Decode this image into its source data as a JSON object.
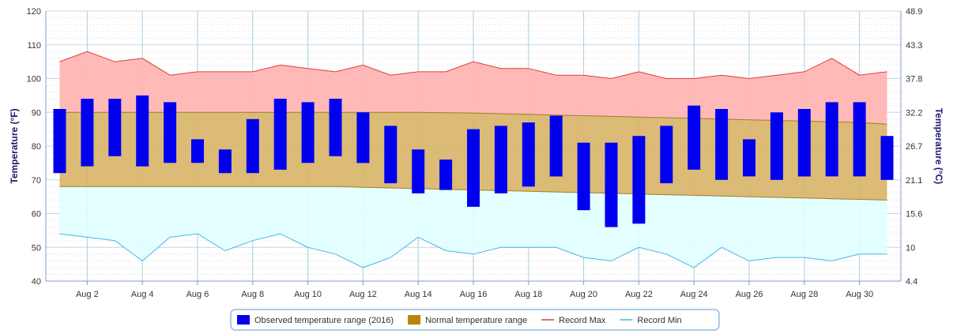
{
  "chart_data": {
    "type": "bar",
    "ylabel": "Temperature (°F)",
    "y2label": "Temperature (°C)",
    "ylim": [
      40,
      120
    ],
    "y_ticks": [
      40,
      50,
      60,
      70,
      80,
      90,
      100,
      110,
      120
    ],
    "y2_ticks": [
      "4.4",
      "10",
      "15.6",
      "21.1",
      "26.7",
      "32.2",
      "37.8",
      "43.3",
      "48.9"
    ],
    "x": [
      "Aug 1",
      "Aug 2",
      "Aug 3",
      "Aug 4",
      "Aug 5",
      "Aug 6",
      "Aug 7",
      "Aug 8",
      "Aug 9",
      "Aug 10",
      "Aug 11",
      "Aug 12",
      "Aug 13",
      "Aug 14",
      "Aug 15",
      "Aug 16",
      "Aug 17",
      "Aug 18",
      "Aug 19",
      "Aug 20",
      "Aug 21",
      "Aug 22",
      "Aug 23",
      "Aug 24",
      "Aug 25",
      "Aug 26",
      "Aug 27",
      "Aug 28",
      "Aug 29",
      "Aug 30",
      "Aug 31"
    ],
    "x_tick_labels": [
      "Aug 2",
      "Aug 4",
      "Aug 6",
      "Aug 8",
      "Aug 10",
      "Aug 12",
      "Aug 14",
      "Aug 16",
      "Aug 18",
      "Aug 20",
      "Aug 22",
      "Aug 24",
      "Aug 26",
      "Aug 28",
      "Aug 30"
    ],
    "grid": true,
    "legend_position": "bottom",
    "series": [
      {
        "name": "Observed temperature range (2016)",
        "color": "#0000ee",
        "low": [
          72,
          74,
          77,
          74,
          75,
          75,
          72,
          72,
          73,
          75,
          77,
          75,
          69,
          66,
          67,
          62,
          66,
          68,
          71,
          61,
          56,
          57,
          69,
          73,
          70,
          71,
          70,
          71,
          71,
          71,
          70
        ],
        "high": [
          91,
          94,
          94,
          95,
          93,
          82,
          79,
          88,
          94,
          93,
          94,
          90,
          86,
          79,
          76,
          85,
          86,
          87,
          89,
          81,
          81,
          83,
          86,
          92,
          91,
          82,
          90,
          91,
          93,
          93,
          83
        ]
      },
      {
        "name": "Normal temperature range",
        "color": "#b8860b",
        "low": [
          68,
          68,
          68,
          68,
          68,
          68,
          68,
          68,
          68,
          68,
          68,
          67.8,
          67.6,
          67.4,
          67.2,
          67,
          66.8,
          66.6,
          66.4,
          66.2,
          66,
          65.8,
          65.6,
          65.4,
          65.2,
          65,
          64.8,
          64.6,
          64.4,
          64.2,
          64
        ],
        "high": [
          90,
          90,
          90,
          90,
          90,
          90,
          90,
          90,
          90,
          90,
          90,
          90,
          90,
          90,
          89.9,
          89.8,
          89.6,
          89.4,
          89.2,
          89,
          88.8,
          88.6,
          88.4,
          88.2,
          88,
          87.8,
          87.6,
          87.4,
          87.2,
          87,
          86.5
        ]
      },
      {
        "name": "Record Max",
        "color": "#e23b3b",
        "values": [
          105,
          108,
          105,
          106,
          101,
          102,
          102,
          102,
          104,
          103,
          102,
          104,
          101,
          102,
          102,
          105,
          103,
          103,
          101,
          101,
          100,
          102,
          100,
          100,
          101,
          100,
          101,
          102,
          106,
          101,
          102
        ]
      },
      {
        "name": "Record Min",
        "color": "#45b6e8",
        "values": [
          54,
          53,
          52,
          46,
          53,
          54,
          49,
          52,
          54,
          50,
          48,
          44,
          47,
          53,
          49,
          48,
          50,
          50,
          50,
          47,
          46,
          50,
          48,
          44,
          50,
          46,
          47,
          47,
          46,
          48,
          48
        ]
      }
    ]
  }
}
